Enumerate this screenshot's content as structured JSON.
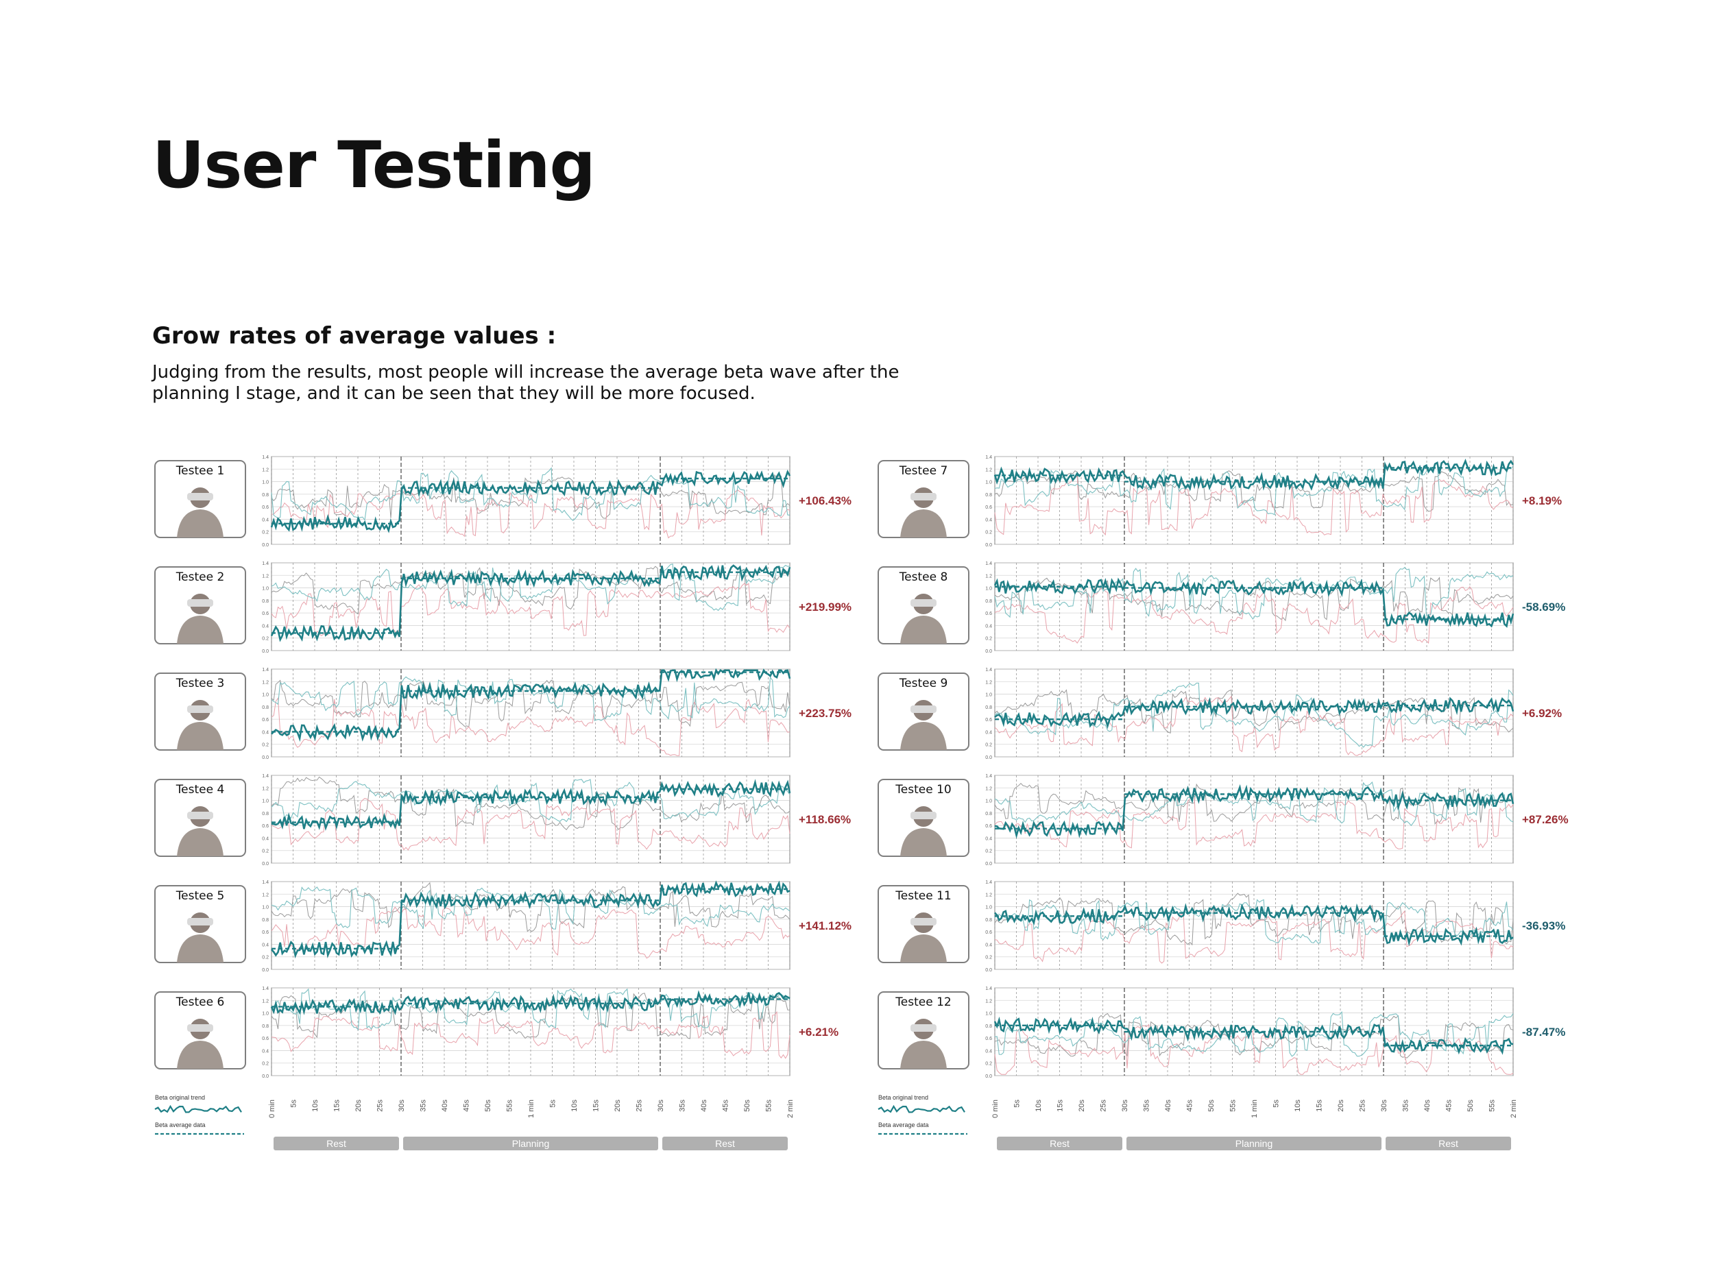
{
  "page": {
    "title": "User Testing",
    "section_heading": "Grow rates of average values :",
    "description": "Judging from the results, most people will increase the average beta wave after the planning I stage, and it can be seen that they will be more focused."
  },
  "legend": {
    "original_trend_label": "Beta original trend",
    "average_data_label": "Beta average data"
  },
  "colors": {
    "teal": "#1f7f86",
    "teal_light": "#7cc0c2",
    "pink": "#e8a2ab",
    "grey_line": "#9a9a9a",
    "positive": "#9b2d33",
    "negative": "#1d5c6b",
    "phase_bar": "#b0b0b0"
  },
  "icons": {
    "photo": "person-photo-icon"
  },
  "chart_data": {
    "type": "line",
    "title": "",
    "ylim": [
      0,
      1.4
    ],
    "y_ticks": [
      "0.0",
      "0.2",
      "0.4",
      "0.6",
      "0.8",
      "1.0",
      "1.2",
      "1.4"
    ],
    "x_ticks": [
      "0 min",
      "5s",
      "10s",
      "15s",
      "20s",
      "25s",
      "30s",
      "35s",
      "40s",
      "45s",
      "50s",
      "55s",
      "1 min",
      "5s",
      "10s",
      "15s",
      "20s",
      "25s",
      "30s",
      "35s",
      "40s",
      "45s",
      "50s",
      "55s",
      "2 min"
    ],
    "phases": [
      {
        "label": "Rest",
        "start_s": 0,
        "end_s": 30
      },
      {
        "label": "Planning",
        "start_s": 30,
        "end_s": 90
      },
      {
        "label": "Rest",
        "start_s": 90,
        "end_s": 120
      }
    ],
    "grid": true,
    "testees": [
      {
        "name": "Testee 1",
        "growth": "+106.43%",
        "sign": "positive",
        "avg": [
          0.33,
          0.9,
          1.05
        ]
      },
      {
        "name": "Testee 2",
        "growth": "+219.99%",
        "sign": "positive",
        "avg": [
          0.28,
          1.15,
          1.25
        ]
      },
      {
        "name": "Testee 3",
        "growth": "+223.75%",
        "sign": "positive",
        "avg": [
          0.4,
          1.05,
          1.35
        ]
      },
      {
        "name": "Testee 4",
        "growth": "+118.66%",
        "sign": "positive",
        "avg": [
          0.65,
          1.05,
          1.18
        ]
      },
      {
        "name": "Testee 5",
        "growth": "+141.12%",
        "sign": "positive",
        "avg": [
          0.33,
          1.1,
          1.28
        ]
      },
      {
        "name": "Testee 6",
        "growth": "+6.21%",
        "sign": "positive",
        "avg": [
          1.1,
          1.15,
          1.22
        ]
      },
      {
        "name": "Testee 7",
        "growth": "+8.19%",
        "sign": "positive",
        "avg": [
          1.1,
          1.0,
          1.22
        ]
      },
      {
        "name": "Testee 8",
        "growth": "-58.69%",
        "sign": "negative",
        "avg": [
          1.02,
          1.0,
          0.5
        ]
      },
      {
        "name": "Testee 9",
        "growth": "+6.92%",
        "sign": "positive",
        "avg": [
          0.6,
          0.8,
          0.82
        ]
      },
      {
        "name": "Testee 10",
        "growth": "+87.26%",
        "sign": "positive",
        "avg": [
          0.55,
          1.1,
          1.0
        ]
      },
      {
        "name": "Testee 11",
        "growth": "-36.93%",
        "sign": "negative",
        "avg": [
          0.85,
          0.9,
          0.53
        ]
      },
      {
        "name": "Testee 12",
        "growth": "-87.47%",
        "sign": "negative",
        "avg": [
          0.8,
          0.7,
          0.48
        ]
      }
    ]
  }
}
